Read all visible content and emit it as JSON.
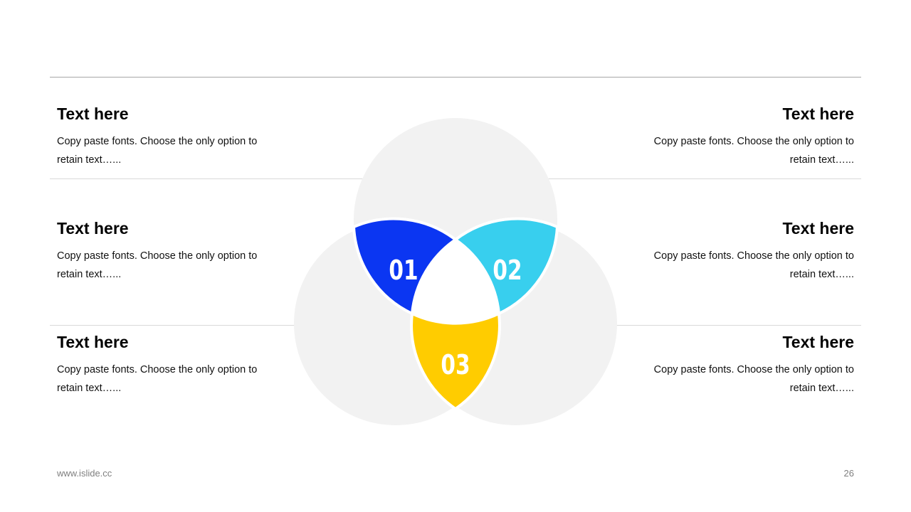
{
  "footer": {
    "url": "www.islide.cc",
    "page_number": "26"
  },
  "diagram": {
    "segments": [
      {
        "label": "01",
        "color": "#0b36f2"
      },
      {
        "label": "02",
        "color": "#38cfee"
      },
      {
        "label": "03",
        "color": "#ffcc00"
      }
    ],
    "circle_color": "#f2f2f2"
  },
  "items": [
    {
      "title": "Text here",
      "text": "Copy paste fonts. Choose the only option to retain text…..."
    },
    {
      "title": "Text here",
      "text": "Copy paste fonts. Choose the only option to retain text…..."
    },
    {
      "title": "Text here",
      "text": "Copy paste fonts. Choose the only option to retain text…..."
    },
    {
      "title": "Text here",
      "text": "Copy paste fonts. Choose the only option to retain text…..."
    },
    {
      "title": "Text here",
      "text": "Copy paste fonts. Choose the only option to retain text…..."
    },
    {
      "title": "Text here",
      "text": "Copy paste fonts. Choose the only option to retain text…..."
    }
  ]
}
